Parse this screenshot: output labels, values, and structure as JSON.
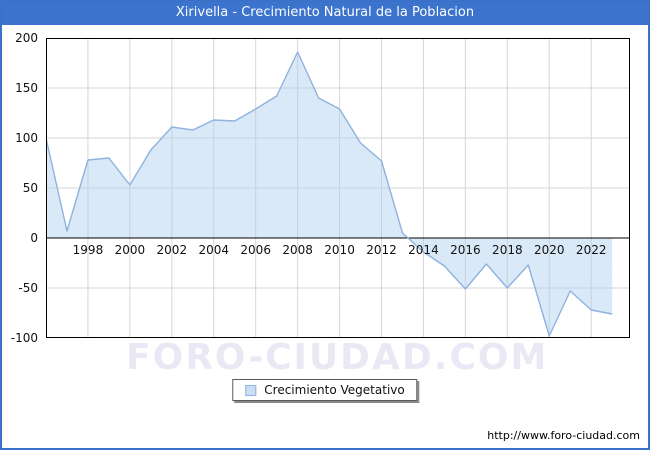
{
  "window": {
    "title": "Xirivella - Crecimiento Natural de la Poblacion"
  },
  "legend": {
    "label": "Crecimiento Vegetativo"
  },
  "watermark": "FORO-CIUDAD.COM",
  "footer": {
    "url": "http://www.foro-ciudad.com"
  },
  "colors": {
    "titlebar": "#3b73cd",
    "frame": "#3b71c9",
    "line": "#8fb2de",
    "fill": "rgba(173,206,240,0.45)",
    "grid": "#d6d6d6",
    "axis": "#000000"
  },
  "chart_data": {
    "type": "area",
    "title": "Xirivella - Crecimiento Natural de la Poblacion",
    "xlabel": "",
    "ylabel": "",
    "x": [
      1996,
      1997,
      1998,
      1999,
      2000,
      2001,
      2002,
      2003,
      2004,
      2005,
      2006,
      2007,
      2008,
      2009,
      2010,
      2011,
      2012,
      2013,
      2014,
      2015,
      2016,
      2017,
      2018,
      2019,
      2020,
      2021,
      2022,
      2023
    ],
    "series": [
      {
        "name": "Crecimiento Vegetativo",
        "values": [
          100,
          7,
          78,
          80,
          53,
          88,
          111,
          108,
          118,
          117,
          129,
          142,
          186,
          140,
          129,
          95,
          77,
          5,
          -14,
          -28,
          -51,
          -26,
          -50,
          -27,
          -98,
          -53,
          -72,
          -76
        ]
      }
    ],
    "baseline": 0,
    "xlim": [
      1996,
      2023.85
    ],
    "ylim": [
      -100,
      200
    ],
    "xticks": [
      1998,
      2000,
      2002,
      2004,
      2006,
      2008,
      2010,
      2012,
      2014,
      2016,
      2018,
      2020,
      2022
    ],
    "yticks": [
      200,
      150,
      100,
      50,
      0,
      -50,
      -100
    ],
    "grid": true,
    "legend_position": "bottom-center"
  }
}
